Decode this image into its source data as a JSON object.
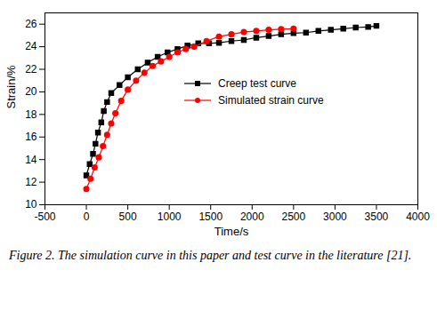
{
  "chart_data": {
    "type": "line",
    "caption": "Figure 2. The simulation curve in this paper and test curve in the literature [21].",
    "x_label": "Time/s",
    "y_label": "Strain/%",
    "xlim": [
      -500,
      4000
    ],
    "xticks": [
      -500,
      0,
      500,
      1000,
      1500,
      2000,
      2500,
      3000,
      3500,
      4000
    ],
    "ylim": [
      10,
      27
    ],
    "yticks": [
      10,
      12,
      14,
      16,
      18,
      20,
      22,
      24,
      26
    ],
    "legend": "right",
    "series": [
      {
        "name": "Creep test curve",
        "color": "#000000",
        "marker": "square",
        "line_style": "solid",
        "x": [
          0,
          40,
          80,
          110,
          140,
          180,
          210,
          250,
          300,
          400,
          500,
          620,
          740,
          860,
          980,
          1100,
          1220,
          1350,
          1480,
          1600,
          1750,
          1900,
          2050,
          2200,
          2350,
          2500,
          2650,
          2800,
          2950,
          3100,
          3250,
          3400,
          3500
        ],
        "values": [
          12.6,
          13.6,
          14.5,
          15.4,
          16.4,
          17.3,
          18.3,
          19.1,
          19.9,
          20.6,
          21.3,
          22.0,
          22.6,
          23.1,
          23.5,
          23.8,
          24.1,
          24.3,
          24.3,
          24.35,
          24.5,
          24.6,
          24.8,
          24.95,
          25.1,
          25.2,
          25.25,
          25.4,
          25.5,
          25.6,
          25.7,
          25.75,
          25.85
        ]
      },
      {
        "name": "Simulated strain curve",
        "color": "#ff0000",
        "marker": "circle",
        "line_style": "solid",
        "x": [
          0,
          50,
          100,
          150,
          200,
          250,
          300,
          350,
          420,
          500,
          600,
          700,
          800,
          900,
          1000,
          1100,
          1200,
          1300,
          1450,
          1600,
          1750,
          1900,
          2050,
          2200,
          2350,
          2500
        ],
        "values": [
          11.4,
          12.3,
          13.3,
          14.2,
          15.2,
          16.2,
          17.2,
          18.1,
          19.2,
          20.2,
          21.0,
          21.7,
          22.3,
          22.7,
          23.1,
          23.5,
          23.8,
          24.0,
          24.5,
          24.9,
          25.1,
          25.3,
          25.4,
          25.5,
          25.55,
          25.6
        ]
      }
    ]
  }
}
